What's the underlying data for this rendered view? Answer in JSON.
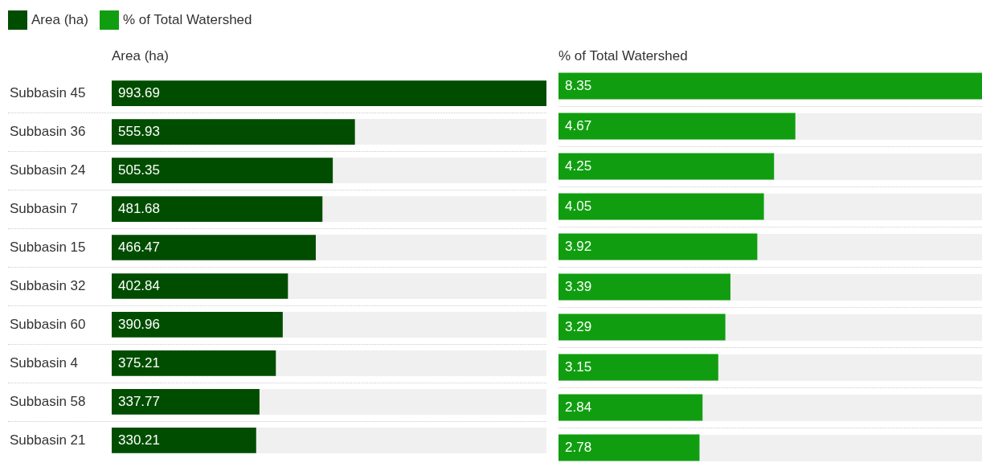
{
  "chart_data": [
    {
      "type": "bar",
      "orientation": "horizontal",
      "xlabel": "Area (ha)",
      "categories": [
        "Subbasin 45",
        "Subbasin 36",
        "Subbasin 24",
        "Subbasin 7",
        "Subbasin 15",
        "Subbasin 32",
        "Subbasin 60",
        "Subbasin 4",
        "Subbasin 58",
        "Subbasin 21"
      ],
      "series": [
        {
          "name": "Area (ha)",
          "color": "#004d00",
          "values": [
            993.69,
            555.93,
            505.35,
            481.68,
            466.47,
            402.84,
            390.96,
            375.21,
            337.77,
            330.21
          ]
        }
      ],
      "data_labels": true,
      "legend": "top left",
      "tick_labels": "y"
    },
    {
      "type": "bar",
      "orientation": "horizontal",
      "xlabel": "% of Total Watershed",
      "categories": [
        null,
        null,
        null,
        null,
        null,
        null,
        null,
        null,
        null,
        null
      ],
      "series": [
        {
          "name": "% of Total Watershed",
          "color": "#109e10",
          "values": [
            8.35,
            4.67,
            4.25,
            4.05,
            3.92,
            3.39,
            3.29,
            3.15,
            2.84,
            2.78
          ]
        }
      ],
      "data_labels": true,
      "legend": "top left",
      "tick_labels": false
    }
  ]
}
